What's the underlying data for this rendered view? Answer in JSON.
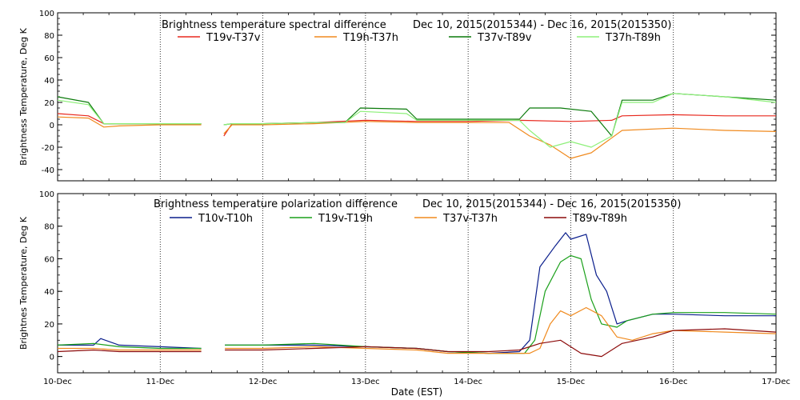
{
  "x_label": "Date (EST)",
  "x_ticks": [
    "10-Dec",
    "11-Dec",
    "12-Dec",
    "13-Dec",
    "14-Dec",
    "15-Dec",
    "16-Dec",
    "17-Dec"
  ],
  "chart_data": [
    {
      "type": "line",
      "title": "Brightness temperature spectral difference",
      "date_range": "Dec 10, 2015(2015344) - Dec 16, 2015(2015350)",
      "xlabel": "",
      "ylabel": "Brightness Temperature, Deg K",
      "xlim": [
        0,
        7
      ],
      "ylim": [
        -50,
        100
      ],
      "y_ticks": [
        -40,
        -20,
        0,
        20,
        40,
        60,
        80,
        100
      ],
      "grid": "vertical dotted at day boundaries",
      "legend_position": "top-center",
      "series": [
        {
          "name": "T19v-T37v",
          "color": "#e8281e",
          "x": [
            0,
            0.3,
            0.45,
            0.6,
            1.0,
            1.4,
            1.6,
            1.62,
            1.7,
            2.0,
            2.5,
            3.0,
            3.5,
            4.0,
            4.5,
            5.0,
            5.4,
            5.5,
            6.0,
            6.5,
            7.0
          ],
          "y": [
            10,
            8,
            1,
            1,
            1,
            1,
            null,
            -10,
            1,
            1,
            2,
            4,
            3,
            3,
            4,
            3,
            4,
            8,
            9,
            8,
            8
          ]
        },
        {
          "name": "T19h-T37h",
          "color": "#f08a1e",
          "x": [
            0,
            0.3,
            0.45,
            0.6,
            1.0,
            1.4,
            1.6,
            1.62,
            1.7,
            2.0,
            2.5,
            3.0,
            3.5,
            4.0,
            4.4,
            4.6,
            4.8,
            5.0,
            5.2,
            5.35,
            5.5,
            6.0,
            6.5,
            7.0
          ],
          "y": [
            7,
            6,
            -2,
            -1,
            0,
            0,
            null,
            -8,
            0,
            0,
            1,
            3,
            2,
            2,
            2,
            -10,
            -18,
            -30,
            -25,
            -15,
            -5,
            -3,
            -5,
            -6
          ]
        },
        {
          "name": "T37v-T89v",
          "color": "#0a7a0a",
          "x": [
            0,
            0.3,
            0.45,
            0.6,
            1.0,
            1.4,
            1.6,
            1.62,
            1.7,
            2.0,
            2.5,
            2.8,
            2.95,
            3.4,
            3.5,
            4.0,
            4.5,
            4.6,
            4.9,
            5.2,
            5.4,
            5.5,
            5.8,
            6.0,
            6.5,
            7.0
          ],
          "y": [
            25,
            20,
            1,
            1,
            1,
            1,
            null,
            0,
            1,
            1,
            2,
            2,
            15,
            14,
            5,
            5,
            5,
            15,
            15,
            12,
            -10,
            22,
            22,
            28,
            25,
            22
          ]
        },
        {
          "name": "T37h-T89h",
          "color": "#8ef07a",
          "x": [
            0,
            0.3,
            0.45,
            0.6,
            1.0,
            1.4,
            1.6,
            1.62,
            1.7,
            2.0,
            2.5,
            2.8,
            2.95,
            3.4,
            3.5,
            4.0,
            4.5,
            4.6,
            4.8,
            5.0,
            5.2,
            5.4,
            5.5,
            5.8,
            6.0,
            6.5,
            7.0
          ],
          "y": [
            22,
            18,
            1,
            1,
            1,
            1,
            null,
            0,
            1,
            1,
            2,
            2,
            12,
            10,
            4,
            4,
            4,
            -5,
            -20,
            -15,
            -20,
            -10,
            20,
            20,
            28,
            25,
            20
          ]
        }
      ]
    },
    {
      "type": "line",
      "title": "Brightness temperature polarization difference",
      "date_range": "Dec 10, 2015(2015344) - Dec 16, 2015(2015350)",
      "xlabel": "Date (EST)",
      "ylabel": "Brightnes Temperature, Deg K",
      "xlim": [
        0,
        7
      ],
      "ylim": [
        -10,
        100
      ],
      "y_ticks": [
        0,
        20,
        40,
        60,
        80,
        100
      ],
      "grid": "vertical dotted at day boundaries",
      "legend_position": "top-center",
      "series": [
        {
          "name": "T10v-T10h",
          "color": "#0a1e8c",
          "x": [
            0,
            0.35,
            0.42,
            0.6,
            1.0,
            1.4,
            1.6,
            1.63,
            1.7,
            2.0,
            2.5,
            3.0,
            3.5,
            3.8,
            4.2,
            4.5,
            4.6,
            4.7,
            4.85,
            4.95,
            5.0,
            5.15,
            5.25,
            5.35,
            5.45,
            5.55,
            5.8,
            6.0,
            6.5,
            7.0
          ],
          "y": [
            7,
            7,
            11,
            7,
            6,
            5,
            null,
            7,
            7,
            7,
            7,
            6,
            5,
            3,
            2,
            3,
            10,
            55,
            68,
            76,
            72,
            75,
            50,
            40,
            20,
            22,
            26,
            26,
            25,
            25
          ]
        },
        {
          "name": "T19v-T19h",
          "color": "#1aa01a",
          "x": [
            0,
            0.35,
            0.6,
            1.0,
            1.4,
            1.6,
            1.63,
            1.7,
            2.0,
            2.5,
            3.0,
            3.5,
            3.8,
            4.2,
            4.55,
            4.65,
            4.75,
            4.9,
            5.0,
            5.1,
            5.2,
            5.3,
            5.45,
            5.55,
            5.8,
            6.0,
            6.5,
            7.0
          ],
          "y": [
            7,
            8,
            6,
            5,
            5,
            null,
            7,
            7,
            7,
            8,
            6,
            5,
            3,
            2,
            2,
            10,
            40,
            58,
            62,
            60,
            35,
            20,
            18,
            22,
            26,
            27,
            27,
            26
          ]
        },
        {
          "name": "T37v-T37h",
          "color": "#f08a1e",
          "x": [
            0,
            0.35,
            0.6,
            1.0,
            1.4,
            1.6,
            1.63,
            1.7,
            2.0,
            2.5,
            3.0,
            3.5,
            3.8,
            4.2,
            4.6,
            4.7,
            4.8,
            4.9,
            5.0,
            5.15,
            5.3,
            5.45,
            5.6,
            5.8,
            6.0,
            6.5,
            7.0
          ],
          "y": [
            5,
            5,
            4,
            4,
            4,
            null,
            5,
            5,
            5,
            6,
            5,
            4,
            2,
            2,
            2,
            5,
            20,
            28,
            25,
            30,
            25,
            12,
            10,
            14,
            16,
            15,
            14
          ]
        },
        {
          "name": "T89v-T89h",
          "color": "#8c0a0a",
          "x": [
            0,
            0.35,
            0.6,
            1.0,
            1.4,
            1.6,
            1.63,
            1.7,
            2.0,
            2.5,
            3.0,
            3.5,
            3.8,
            4.2,
            4.5,
            4.7,
            4.9,
            5.1,
            5.3,
            5.5,
            5.8,
            6.0,
            6.5,
            7.0
          ],
          "y": [
            3,
            4,
            3,
            3,
            3,
            null,
            4,
            4,
            4,
            5,
            6,
            5,
            3,
            3,
            4,
            8,
            10,
            2,
            0,
            8,
            12,
            16,
            17,
            15
          ]
        }
      ]
    }
  ]
}
